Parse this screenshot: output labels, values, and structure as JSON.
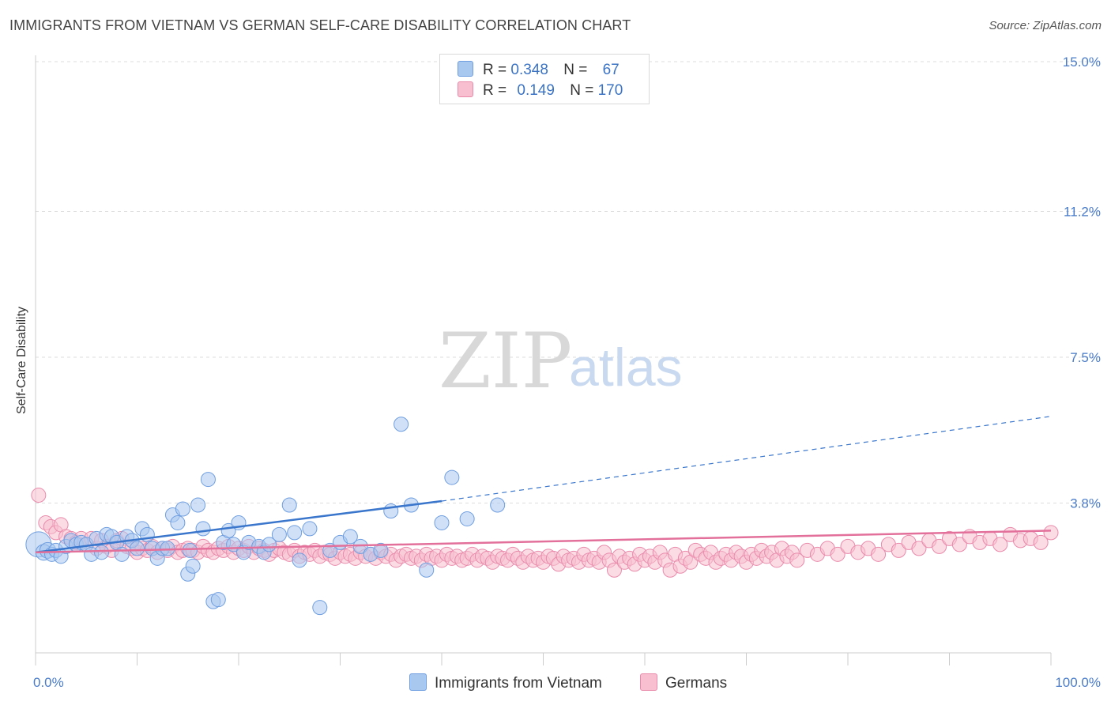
{
  "title": "IMMIGRANTS FROM VIETNAM VS GERMAN SELF-CARE DISABILITY CORRELATION CHART",
  "source": "Source: ZipAtlas.com",
  "watermark": {
    "zip": "ZIP",
    "atlas": "atlas"
  },
  "legend": {
    "rows": [
      {
        "r_label": "R =",
        "r_value": "0.348",
        "n_label": "N =",
        "n_value": "67",
        "color": "#a9c8f0",
        "border": "#6f9ee0"
      },
      {
        "r_label": "R =",
        "r_value": "0.149",
        "n_label": "N =",
        "n_value": "170",
        "color": "#f7bfd0",
        "border": "#e98aab"
      }
    ]
  },
  "bottom_legend": [
    {
      "label": "Immigrants from Vietnam",
      "color": "#a9c8f0",
      "border": "#6f9ee0"
    },
    {
      "label": "Germans",
      "color": "#f7bfd0",
      "border": "#e98aab"
    }
  ],
  "chart_data": {
    "type": "scatter",
    "title": "IMMIGRANTS FROM VIETNAM VS GERMAN SELF-CARE DISABILITY CORRELATION CHART",
    "xlabel": "",
    "ylabel": "Self-Care Disability",
    "xlim": [
      0,
      100
    ],
    "ylim": [
      0.0,
      15.0
    ],
    "x_tick_labels": [
      "0.0%",
      "100.0%"
    ],
    "y_ticks": [
      3.8,
      7.5,
      11.2,
      15.0
    ],
    "y_tick_labels": [
      "3.8%",
      "7.5%",
      "11.2%",
      "15.0%"
    ],
    "grid": "horizontal dashed",
    "legend_position": "top-center",
    "series": [
      {
        "name": "Immigrants from Vietnam",
        "color": "#6f9ee0",
        "fill": "#a9c8f0",
        "trend": {
          "x0": 0,
          "y0": 2.55,
          "x1": 40,
          "y1": 3.85,
          "dashed_to_x": 100,
          "dashed_to_y": 6.0
        },
        "points": [
          [
            0.3,
            2.75,
            16
          ],
          [
            0.8,
            2.55,
            10
          ],
          [
            1.2,
            2.6,
            10
          ],
          [
            1.6,
            2.5,
            9
          ],
          [
            2.0,
            2.6,
            9
          ],
          [
            2.5,
            2.45,
            9
          ],
          [
            3.0,
            2.7,
            9
          ],
          [
            3.5,
            2.85,
            9
          ],
          [
            4.0,
            2.75,
            9
          ],
          [
            4.5,
            2.8,
            9
          ],
          [
            5.0,
            2.75,
            9
          ],
          [
            5.5,
            2.5,
            9
          ],
          [
            6.0,
            2.9,
            9
          ],
          [
            6.5,
            2.55,
            9
          ],
          [
            7.0,
            3.0,
            9
          ],
          [
            7.5,
            2.95,
            9
          ],
          [
            8.0,
            2.8,
            9
          ],
          [
            8.5,
            2.5,
            9
          ],
          [
            9.0,
            2.95,
            9
          ],
          [
            9.5,
            2.85,
            9
          ],
          [
            10.0,
            2.65,
            9
          ],
          [
            10.5,
            3.15,
            9
          ],
          [
            11.0,
            3.0,
            9
          ],
          [
            11.5,
            2.65,
            9
          ],
          [
            12.0,
            2.4,
            9
          ],
          [
            12.5,
            2.65,
            9
          ],
          [
            13.0,
            2.65,
            9
          ],
          [
            13.5,
            3.5,
            9
          ],
          [
            14.0,
            3.3,
            9
          ],
          [
            14.5,
            3.65,
            9
          ],
          [
            15.0,
            2.0,
            9
          ],
          [
            15.2,
            2.6,
            9
          ],
          [
            15.5,
            2.2,
            9
          ],
          [
            16.0,
            3.75,
            9
          ],
          [
            16.5,
            3.15,
            9
          ],
          [
            17.0,
            4.4,
            9
          ],
          [
            17.5,
            1.3,
            9
          ],
          [
            18.0,
            1.35,
            9
          ],
          [
            18.5,
            2.8,
            9
          ],
          [
            19.0,
            3.1,
            9
          ],
          [
            19.5,
            2.75,
            9
          ],
          [
            20.0,
            3.3,
            9
          ],
          [
            20.5,
            2.55,
            9
          ],
          [
            21.0,
            2.8,
            9
          ],
          [
            22.0,
            2.7,
            9
          ],
          [
            22.5,
            2.55,
            9
          ],
          [
            23.0,
            2.75,
            9
          ],
          [
            24.0,
            3.0,
            9
          ],
          [
            25.0,
            3.75,
            9
          ],
          [
            25.5,
            3.05,
            9
          ],
          [
            26.0,
            2.35,
            9
          ],
          [
            27.0,
            3.15,
            9
          ],
          [
            28.0,
            1.15,
            9
          ],
          [
            29.0,
            2.6,
            9
          ],
          [
            30.0,
            2.8,
            9
          ],
          [
            31.0,
            2.95,
            9
          ],
          [
            32.0,
            2.7,
            9
          ],
          [
            33.0,
            2.5,
            9
          ],
          [
            34.0,
            2.6,
            9
          ],
          [
            35.0,
            3.6,
            9
          ],
          [
            36.0,
            5.8,
            9
          ],
          [
            37.0,
            3.75,
            9
          ],
          [
            38.5,
            2.1,
            9
          ],
          [
            40.0,
            3.3,
            9
          ],
          [
            41.0,
            4.45,
            9
          ],
          [
            42.5,
            3.4,
            9
          ],
          [
            45.5,
            3.75,
            9
          ]
        ]
      },
      {
        "name": "Germans",
        "color": "#e98aab",
        "fill": "#f7bfd0",
        "trend": {
          "x0": 0,
          "y0": 2.55,
          "x1": 100,
          "y1": 3.1
        },
        "points": [
          [
            0.3,
            4.0,
            9
          ],
          [
            1.0,
            3.3,
            9
          ],
          [
            1.5,
            3.2,
            9
          ],
          [
            2.0,
            3.05,
            9
          ],
          [
            2.5,
            3.25,
            9
          ],
          [
            3.0,
            2.95,
            9
          ],
          [
            3.5,
            2.9,
            9
          ],
          [
            4.0,
            2.8,
            9
          ],
          [
            4.5,
            2.9,
            9
          ],
          [
            5.0,
            2.75,
            9
          ],
          [
            5.5,
            2.9,
            9
          ],
          [
            6.0,
            2.65,
            9
          ],
          [
            6.5,
            2.85,
            9
          ],
          [
            7.0,
            2.7,
            9
          ],
          [
            7.5,
            2.6,
            9
          ],
          [
            8.0,
            2.85,
            9
          ],
          [
            8.5,
            2.9,
            9
          ],
          [
            9.0,
            2.7,
            9
          ],
          [
            9.5,
            2.65,
            9
          ],
          [
            10.0,
            2.55,
            9
          ],
          [
            10.5,
            2.65,
            9
          ],
          [
            11.0,
            2.6,
            9
          ],
          [
            11.5,
            2.7,
            9
          ],
          [
            12.0,
            2.55,
            9
          ],
          [
            12.5,
            2.65,
            9
          ],
          [
            13.0,
            2.6,
            9
          ],
          [
            13.5,
            2.7,
            9
          ],
          [
            14.0,
            2.55,
            9
          ],
          [
            14.5,
            2.6,
            9
          ],
          [
            15.0,
            2.65,
            9
          ],
          [
            15.5,
            2.6,
            9
          ],
          [
            16.0,
            2.55,
            9
          ],
          [
            16.5,
            2.7,
            9
          ],
          [
            17.0,
            2.6,
            9
          ],
          [
            17.5,
            2.55,
            9
          ],
          [
            18.0,
            2.65,
            9
          ],
          [
            18.5,
            2.6,
            9
          ],
          [
            19.0,
            2.7,
            9
          ],
          [
            19.5,
            2.55,
            9
          ],
          [
            20.0,
            2.65,
            9
          ],
          [
            20.5,
            2.6,
            9
          ],
          [
            21.0,
            2.7,
            9
          ],
          [
            21.5,
            2.55,
            9
          ],
          [
            22.0,
            2.65,
            9
          ],
          [
            22.5,
            2.6,
            9
          ],
          [
            23.0,
            2.5,
            9
          ],
          [
            23.5,
            2.6,
            9
          ],
          [
            24.0,
            2.65,
            9
          ],
          [
            24.5,
            2.55,
            9
          ],
          [
            25.0,
            2.5,
            9
          ],
          [
            25.5,
            2.6,
            9
          ],
          [
            26.0,
            2.45,
            9
          ],
          [
            26.5,
            2.55,
            9
          ],
          [
            27.0,
            2.5,
            9
          ],
          [
            27.5,
            2.6,
            9
          ],
          [
            28.0,
            2.45,
            9
          ],
          [
            28.5,
            2.55,
            9
          ],
          [
            29.0,
            2.5,
            9
          ],
          [
            29.5,
            2.4,
            9
          ],
          [
            30.0,
            2.55,
            9
          ],
          [
            30.5,
            2.45,
            9
          ],
          [
            31.0,
            2.5,
            9
          ],
          [
            31.5,
            2.4,
            9
          ],
          [
            32.0,
            2.55,
            9
          ],
          [
            32.5,
            2.45,
            9
          ],
          [
            33.0,
            2.5,
            9
          ],
          [
            33.5,
            2.4,
            9
          ],
          [
            34.0,
            2.55,
            9
          ],
          [
            34.5,
            2.45,
            9
          ],
          [
            35.0,
            2.5,
            9
          ],
          [
            35.5,
            2.35,
            9
          ],
          [
            36.0,
            2.45,
            9
          ],
          [
            36.5,
            2.5,
            9
          ],
          [
            37.0,
            2.4,
            9
          ],
          [
            37.5,
            2.45,
            9
          ],
          [
            38.0,
            2.35,
            9
          ],
          [
            38.5,
            2.5,
            9
          ],
          [
            39.0,
            2.4,
            9
          ],
          [
            39.5,
            2.45,
            9
          ],
          [
            40.0,
            2.35,
            9
          ],
          [
            40.5,
            2.5,
            9
          ],
          [
            41.0,
            2.4,
            9
          ],
          [
            41.5,
            2.45,
            9
          ],
          [
            42.0,
            2.35,
            9
          ],
          [
            42.5,
            2.4,
            9
          ],
          [
            43.0,
            2.5,
            9
          ],
          [
            43.5,
            2.35,
            9
          ],
          [
            44.0,
            2.45,
            9
          ],
          [
            44.5,
            2.4,
            9
          ],
          [
            45.0,
            2.3,
            9
          ],
          [
            45.5,
            2.45,
            9
          ],
          [
            46.0,
            2.4,
            9
          ],
          [
            46.5,
            2.35,
            9
          ],
          [
            47.0,
            2.5,
            9
          ],
          [
            47.5,
            2.4,
            9
          ],
          [
            48.0,
            2.3,
            9
          ],
          [
            48.5,
            2.45,
            9
          ],
          [
            49.0,
            2.35,
            9
          ],
          [
            49.5,
            2.4,
            9
          ],
          [
            50.0,
            2.3,
            9
          ],
          [
            50.5,
            2.45,
            9
          ],
          [
            51.0,
            2.4,
            9
          ],
          [
            51.5,
            2.25,
            9
          ],
          [
            52.0,
            2.45,
            9
          ],
          [
            52.5,
            2.35,
            9
          ],
          [
            53.0,
            2.4,
            9
          ],
          [
            53.5,
            2.3,
            9
          ],
          [
            54.0,
            2.5,
            9
          ],
          [
            54.5,
            2.35,
            9
          ],
          [
            55.0,
            2.4,
            9
          ],
          [
            55.5,
            2.3,
            9
          ],
          [
            56.0,
            2.55,
            9
          ],
          [
            56.5,
            2.35,
            9
          ],
          [
            57.0,
            2.1,
            9
          ],
          [
            57.5,
            2.45,
            9
          ],
          [
            58.0,
            2.3,
            9
          ],
          [
            58.5,
            2.4,
            9
          ],
          [
            59.0,
            2.25,
            9
          ],
          [
            59.5,
            2.5,
            9
          ],
          [
            60.0,
            2.35,
            9
          ],
          [
            60.5,
            2.45,
            9
          ],
          [
            61.0,
            2.3,
            9
          ],
          [
            61.5,
            2.55,
            9
          ],
          [
            62.0,
            2.35,
            9
          ],
          [
            62.5,
            2.1,
            9
          ],
          [
            63.0,
            2.5,
            9
          ],
          [
            63.5,
            2.2,
            9
          ],
          [
            64.0,
            2.4,
            9
          ],
          [
            64.5,
            2.3,
            9
          ],
          [
            65.0,
            2.6,
            9
          ],
          [
            65.5,
            2.5,
            9
          ],
          [
            66.0,
            2.4,
            9
          ],
          [
            66.5,
            2.55,
            9
          ],
          [
            67.0,
            2.3,
            9
          ],
          [
            67.5,
            2.4,
            9
          ],
          [
            68.0,
            2.5,
            9
          ],
          [
            68.5,
            2.35,
            9
          ],
          [
            69.0,
            2.55,
            9
          ],
          [
            69.5,
            2.45,
            9
          ],
          [
            70.0,
            2.3,
            9
          ],
          [
            70.5,
            2.5,
            9
          ],
          [
            71.0,
            2.4,
            9
          ],
          [
            71.5,
            2.6,
            9
          ],
          [
            72.0,
            2.45,
            9
          ],
          [
            72.5,
            2.55,
            9
          ],
          [
            73.0,
            2.35,
            9
          ],
          [
            73.5,
            2.65,
            9
          ],
          [
            74.0,
            2.45,
            9
          ],
          [
            74.5,
            2.55,
            9
          ],
          [
            75.0,
            2.35,
            9
          ],
          [
            76.0,
            2.6,
            9
          ],
          [
            77.0,
            2.5,
            9
          ],
          [
            78.0,
            2.65,
            9
          ],
          [
            79.0,
            2.5,
            9
          ],
          [
            80.0,
            2.7,
            9
          ],
          [
            81.0,
            2.55,
            9
          ],
          [
            82.0,
            2.65,
            9
          ],
          [
            83.0,
            2.5,
            9
          ],
          [
            84.0,
            2.75,
            9
          ],
          [
            85.0,
            2.6,
            9
          ],
          [
            86.0,
            2.8,
            9
          ],
          [
            87.0,
            2.65,
            9
          ],
          [
            88.0,
            2.85,
            9
          ],
          [
            89.0,
            2.7,
            9
          ],
          [
            90.0,
            2.9,
            9
          ],
          [
            91.0,
            2.75,
            9
          ],
          [
            92.0,
            2.95,
            9
          ],
          [
            93.0,
            2.8,
            9
          ],
          [
            94.0,
            2.9,
            9
          ],
          [
            95.0,
            2.75,
            9
          ],
          [
            96.0,
            3.0,
            9
          ],
          [
            97.0,
            2.85,
            9
          ],
          [
            98.0,
            2.9,
            9
          ],
          [
            99.0,
            2.8,
            9
          ],
          [
            100.0,
            3.05,
            9
          ]
        ]
      }
    ]
  }
}
